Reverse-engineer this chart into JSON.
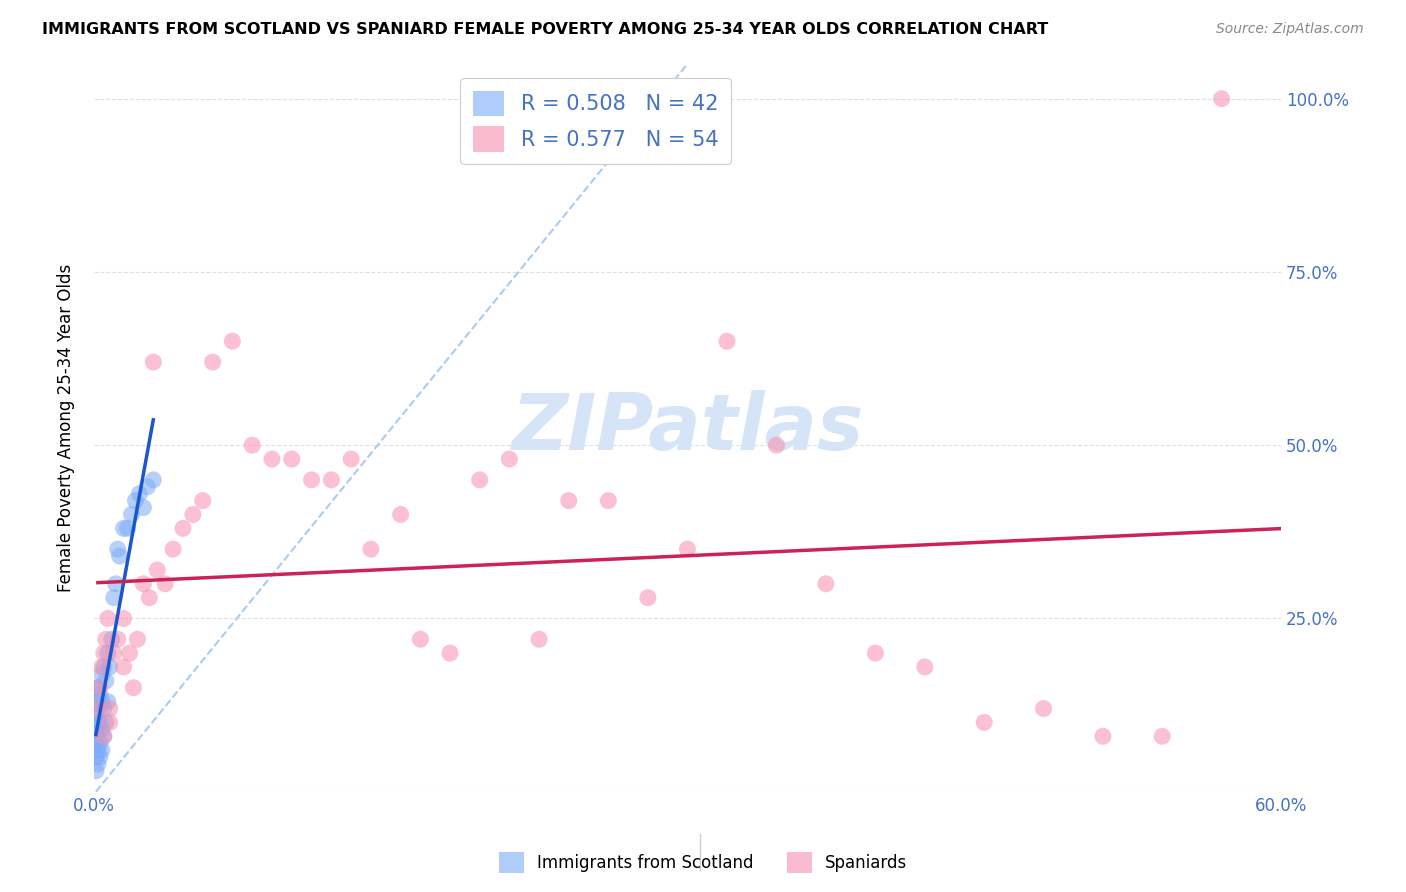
{
  "title": "IMMIGRANTS FROM SCOTLAND VS SPANIARD FEMALE POVERTY AMONG 25-34 YEAR OLDS CORRELATION CHART",
  "source": "Source: ZipAtlas.com",
  "ylabel": "Female Poverty Among 25-34 Year Olds",
  "xlim": [
    0.0,
    0.6
  ],
  "ylim": [
    0.0,
    1.05
  ],
  "xtick_vals": [
    0.0,
    0.6
  ],
  "xtick_labels": [
    "0.0%",
    "60.0%"
  ],
  "ytick_vals": [
    0.0,
    0.25,
    0.5,
    0.75,
    1.0
  ],
  "ytick_labels": [
    "",
    "25.0%",
    "50.0%",
    "75.0%",
    "100.0%"
  ],
  "scotland_color": "#7baaf7",
  "spaniard_color": "#f98eb0",
  "scotland_R": 0.508,
  "scotland_N": 42,
  "spaniard_R": 0.577,
  "spaniard_N": 54,
  "watermark_color": "#d5e5f7",
  "scot_line_color": "#1a56cc",
  "span_line_color": "#cc2255",
  "diag_color": "#aaccee",
  "scotland_x": [
    0.001,
    0.001,
    0.001,
    0.001,
    0.001,
    0.001,
    0.001,
    0.002,
    0.002,
    0.002,
    0.002,
    0.002,
    0.002,
    0.003,
    0.003,
    0.003,
    0.003,
    0.004,
    0.004,
    0.004,
    0.004,
    0.005,
    0.005,
    0.005,
    0.006,
    0.006,
    0.007,
    0.007,
    0.008,
    0.009,
    0.01,
    0.011,
    0.012,
    0.013,
    0.015,
    0.017,
    0.019,
    0.021,
    0.023,
    0.025,
    0.027,
    0.03
  ],
  "scotland_y": [
    0.03,
    0.05,
    0.07,
    0.09,
    0.11,
    0.13,
    0.15,
    0.04,
    0.06,
    0.08,
    0.1,
    0.12,
    0.15,
    0.05,
    0.07,
    0.1,
    0.14,
    0.06,
    0.09,
    0.13,
    0.17,
    0.08,
    0.12,
    0.18,
    0.1,
    0.16,
    0.13,
    0.2,
    0.18,
    0.22,
    0.28,
    0.3,
    0.35,
    0.34,
    0.38,
    0.38,
    0.4,
    0.42,
    0.43,
    0.41,
    0.44,
    0.45
  ],
  "spaniard_x": [
    0.002,
    0.003,
    0.004,
    0.005,
    0.006,
    0.007,
    0.008,
    0.01,
    0.012,
    0.015,
    0.018,
    0.022,
    0.025,
    0.028,
    0.032,
    0.036,
    0.04,
    0.045,
    0.05,
    0.055,
    0.06,
    0.07,
    0.08,
    0.09,
    0.1,
    0.11,
    0.12,
    0.13,
    0.14,
    0.155,
    0.165,
    0.18,
    0.195,
    0.21,
    0.225,
    0.24,
    0.26,
    0.28,
    0.3,
    0.32,
    0.345,
    0.37,
    0.395,
    0.42,
    0.45,
    0.48,
    0.51,
    0.54,
    0.57,
    0.005,
    0.008,
    0.015,
    0.02,
    0.03
  ],
  "spaniard_y": [
    0.12,
    0.15,
    0.18,
    0.2,
    0.22,
    0.25,
    0.1,
    0.2,
    0.22,
    0.25,
    0.2,
    0.22,
    0.3,
    0.28,
    0.32,
    0.3,
    0.35,
    0.38,
    0.4,
    0.42,
    0.62,
    0.65,
    0.5,
    0.48,
    0.48,
    0.45,
    0.45,
    0.48,
    0.35,
    0.4,
    0.22,
    0.2,
    0.45,
    0.48,
    0.22,
    0.42,
    0.42,
    0.28,
    0.35,
    0.65,
    0.5,
    0.3,
    0.2,
    0.18,
    0.1,
    0.12,
    0.08,
    0.08,
    1.0,
    0.08,
    0.12,
    0.18,
    0.15,
    0.62
  ]
}
